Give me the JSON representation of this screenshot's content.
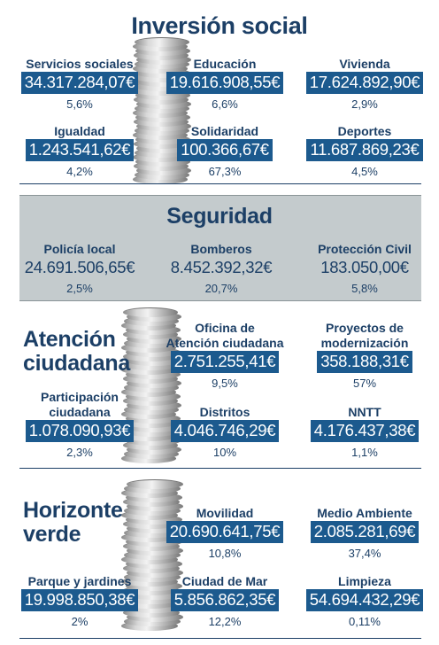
{
  "inversion": {
    "title": "Inversión social",
    "items": [
      {
        "label": "Servicios sociales",
        "amount": "34.317.284,07€",
        "pct": "5,6%"
      },
      {
        "label": "Educación",
        "amount": "19.616.908,55€",
        "pct": "6,6%"
      },
      {
        "label": "Vivienda",
        "amount": "17.624.892,90€",
        "pct": "2,9%"
      },
      {
        "label": "Igualdad",
        "amount": "1.243.541,62€",
        "pct": "4,2%"
      },
      {
        "label": "Solidaridad",
        "amount": "100.366,67€",
        "pct": "67,3%"
      },
      {
        "label": "Deportes",
        "amount": "11.687.869,23€",
        "pct": "4,5%"
      }
    ]
  },
  "seguridad": {
    "title": "Seguridad",
    "items": [
      {
        "label": "Policía local",
        "amount": "24.691.506,65€",
        "pct": "2,5%"
      },
      {
        "label": "Bomberos",
        "amount": "8.452.392,32€",
        "pct": "20,7%"
      },
      {
        "label": "Protección Civil",
        "amount": "183.050,00€",
        "pct": "5,8%"
      }
    ]
  },
  "atencion": {
    "title_line1": "Atención",
    "title_line2": "ciudadana",
    "items": [
      {
        "label_line1": "Oficina de",
        "label_line2": "Atención ciudadana",
        "amount": "2.751.255,41€",
        "pct": "9,5%"
      },
      {
        "label_line1": "Proyectos de",
        "label_line2": "modernización",
        "amount": "358.188,31€",
        "pct": "57%"
      },
      {
        "label_line1": "Participación",
        "label_line2": "ciudadana",
        "amount": "1.078.090,93€",
        "pct": "2,3%"
      },
      {
        "label": "Distritos",
        "amount": "4.046.746,29€",
        "pct": "10%"
      },
      {
        "label": "NNTT",
        "amount": "4.176.437,38€",
        "pct": "1,1%"
      }
    ]
  },
  "horizonte": {
    "title_line1": "Horizonte",
    "title_line2": "verde",
    "items": [
      {
        "label": "Movilidad",
        "amount": "20.690.641,75€",
        "pct": "10,8%"
      },
      {
        "label": "Medio Ambiente",
        "amount": "2.085.281,69€",
        "pct": "37,4%"
      },
      {
        "label": "Parque y jardines",
        "amount": "19.998.850,38€",
        "pct": "2%"
      },
      {
        "label": "Ciudad de Mar",
        "amount": "5.856.862,35€",
        "pct": "12,2%"
      },
      {
        "label": "Limpieza",
        "amount": "54.694.432,29€",
        "pct": "0,11%"
      }
    ]
  },
  "colors": {
    "navy_text": "#1c3f66",
    "amount_box": "#1c5a8e",
    "seguridad_band": "#c4cbcd"
  }
}
